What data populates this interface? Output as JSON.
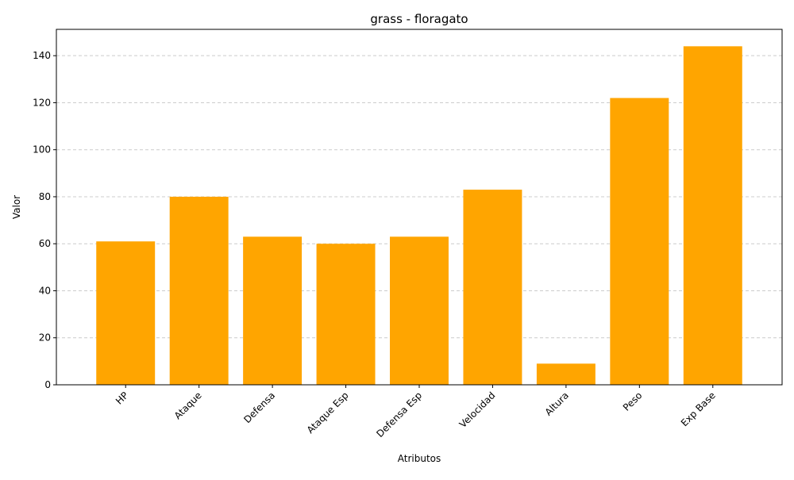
{
  "chart_data": {
    "type": "bar",
    "title": "grass - floragato",
    "xlabel": "Atributos",
    "ylabel": "Valor",
    "categories": [
      "HP",
      "Ataque",
      "Defensa",
      "Ataque Esp",
      "Defensa Esp",
      "Velocidad",
      "Altura",
      "Peso",
      "Exp Base"
    ],
    "values": [
      61,
      80,
      63,
      60,
      63,
      83,
      9,
      122,
      144
    ],
    "ylim": [
      0,
      151.2
    ],
    "yticks": [
      0,
      20,
      40,
      60,
      80,
      100,
      120,
      140
    ],
    "ytick_labels": [
      "0",
      "20",
      "40",
      "60",
      "80",
      "100",
      "120",
      "140"
    ],
    "grid": "y-dashed",
    "legend": "none",
    "bar_color": "#ffa500",
    "xtick_rotation": 45
  }
}
